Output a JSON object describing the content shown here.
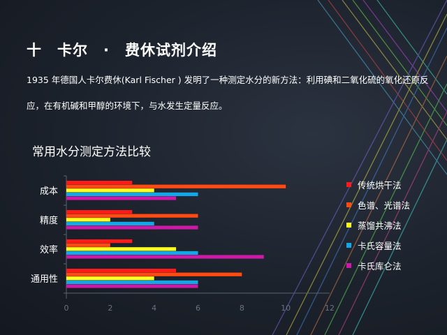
{
  "slide": {
    "title": "十　卡尔　·　费休试剂介绍",
    "intro": "1935 年德国人卡尔费休(Karl  Fischer ) 发明了一种测定水分的新方法：利用碘和二氧化硫的氧化还原反应，在有机碱和甲醇的环境下，与水发生定量反应。"
  },
  "chart_data": {
    "type": "bar",
    "orientation": "horizontal",
    "title": "常用水分测定方法比较",
    "categories": [
      "成本",
      "精度",
      "效率",
      "通用性"
    ],
    "series": [
      {
        "name": "传统烘干法",
        "color": "#ff1a1a",
        "values": [
          3,
          3,
          3,
          5
        ]
      },
      {
        "name": "色谱、光谱法",
        "color": "#ff4a12",
        "values": [
          10,
          6,
          2,
          8
        ]
      },
      {
        "name": "蒸馏共沸法",
        "color": "#ffff1e",
        "values": [
          4,
          2,
          5,
          4
        ]
      },
      {
        "name": "卡氏容量法",
        "color": "#12a8e8",
        "values": [
          6,
          4,
          6,
          6
        ]
      },
      {
        "name": "卡氏库仑法",
        "color": "#cc1aa6",
        "values": [
          5,
          6,
          9,
          6
        ]
      }
    ],
    "xlim": [
      0,
      12
    ],
    "xticks": [
      0,
      2,
      4,
      6,
      8,
      10,
      12
    ],
    "grid": false,
    "legend_position": "right"
  }
}
